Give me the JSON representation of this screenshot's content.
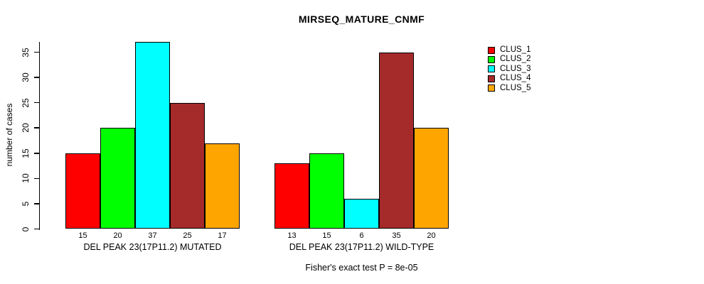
{
  "chart_data": {
    "type": "bar",
    "title": "MIRSEQ_MATURE_CNMF",
    "ylabel": "number of cases",
    "xlabel": "",
    "ylim": [
      0,
      37
    ],
    "yticks": [
      0,
      5,
      10,
      15,
      20,
      25,
      30,
      35
    ],
    "grid": false,
    "legend_position": "right",
    "bar_border_color": "#000000",
    "background_color": "#ffffff",
    "text_color": "#000000",
    "series": [
      {
        "name": "CLUS_1",
        "color": "#ff0000"
      },
      {
        "name": "CLUS_2",
        "color": "#00ff00"
      },
      {
        "name": "CLUS_3",
        "color": "#00ffff"
      },
      {
        "name": "CLUS_4",
        "color": "#a52a2a"
      },
      {
        "name": "CLUS_5",
        "color": "#ffa500"
      }
    ],
    "groups": [
      {
        "label": "DEL PEAK 23(17P11.2) MUTATED",
        "values": [
          15,
          20,
          37,
          25,
          17
        ]
      },
      {
        "label": "DEL PEAK 23(17P11.2) WILD-TYPE",
        "values": [
          13,
          15,
          6,
          35,
          20
        ]
      }
    ],
    "footnote": "Fisher's exact test P = 8e-05"
  }
}
